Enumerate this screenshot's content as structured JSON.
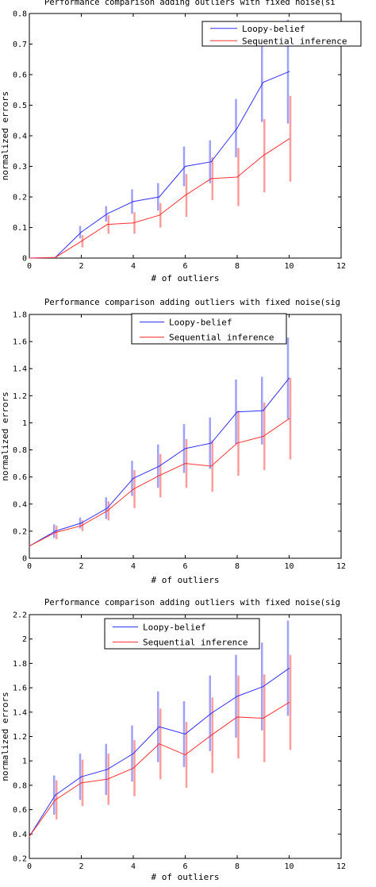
{
  "chart_data": [
    {
      "type": "line",
      "title": "Performance comparison adding outliers with fixed noise(si",
      "xlabel": "# of outliers",
      "ylabel": "normalized errors",
      "xlim": [
        0,
        12
      ],
      "ylim": [
        0,
        0.8
      ],
      "xticks": [
        0,
        2,
        4,
        6,
        8,
        10,
        12
      ],
      "yticks": [
        0,
        0.1,
        0.2,
        0.3,
        0.4,
        0.5,
        0.6,
        0.7,
        0.8
      ],
      "x": [
        0,
        1,
        2,
        3,
        4,
        5,
        6,
        7,
        8,
        9,
        10
      ],
      "legend_position": "top-right",
      "series": [
        {
          "name": "Loopy-belief",
          "color": "#3333ff",
          "errcolor": "#a0a0ff",
          "values": [
            0,
            0.002,
            0.085,
            0.145,
            0.185,
            0.2,
            0.3,
            0.315,
            0.425,
            0.575,
            0.61
          ],
          "err": [
            0,
            0,
            0.02,
            0.025,
            0.04,
            0.045,
            0.065,
            0.07,
            0.095,
            0.13,
            0.17
          ]
        },
        {
          "name": "Sequential inference",
          "color": "#ff3333",
          "errcolor": "#ff9c9c",
          "values": [
            0,
            0.002,
            0.055,
            0.11,
            0.115,
            0.14,
            0.205,
            0.26,
            0.265,
            0.335,
            0.39
          ],
          "err": [
            0,
            0,
            0.02,
            0.03,
            0.035,
            0.04,
            0.07,
            0.07,
            0.095,
            0.12,
            0.14
          ]
        }
      ]
    },
    {
      "type": "line",
      "title": "Performance comparison adding outliers with fixed noise(sig",
      "xlabel": "# of outliers",
      "ylabel": "normalized errors",
      "xlim": [
        0,
        12
      ],
      "ylim": [
        0,
        1.8
      ],
      "xticks": [
        0,
        2,
        4,
        6,
        8,
        10,
        12
      ],
      "yticks": [
        0,
        0.2,
        0.4,
        0.6,
        0.8,
        1,
        1.2,
        1.4,
        1.6,
        1.8
      ],
      "x": [
        0,
        1,
        2,
        3,
        4,
        5,
        6,
        7,
        8,
        9,
        10
      ],
      "legend_position": "top-center",
      "series": [
        {
          "name": "Loopy-belief",
          "color": "#3333ff",
          "errcolor": "#a0a0ff",
          "values": [
            0.09,
            0.2,
            0.26,
            0.37,
            0.59,
            0.68,
            0.81,
            0.85,
            1.08,
            1.09,
            1.33
          ],
          "err": [
            0,
            0.05,
            0.04,
            0.08,
            0.13,
            0.16,
            0.18,
            0.19,
            0.24,
            0.25,
            0.3
          ]
        },
        {
          "name": "Sequential inference",
          "color": "#ff3333",
          "errcolor": "#ff9c9c",
          "values": [
            0.09,
            0.19,
            0.24,
            0.35,
            0.51,
            0.61,
            0.7,
            0.68,
            0.85,
            0.9,
            1.03
          ],
          "err": [
            0,
            0.05,
            0.04,
            0.07,
            0.14,
            0.16,
            0.18,
            0.19,
            0.24,
            0.25,
            0.3
          ]
        }
      ]
    },
    {
      "type": "line",
      "title": "Performance comparison adding outliers with fixed noise(sig",
      "xlabel": "# of outliers",
      "ylabel": "normalized errors",
      "xlim": [
        0,
        12
      ],
      "ylim": [
        0.2,
        2.2
      ],
      "xticks": [
        0,
        2,
        4,
        6,
        8,
        10,
        12
      ],
      "yticks": [
        0.2,
        0.4,
        0.6,
        0.8,
        1,
        1.2,
        1.4,
        1.6,
        1.8,
        2,
        2.2
      ],
      "x": [
        0,
        1,
        2,
        3,
        4,
        5,
        6,
        7,
        8,
        9,
        10
      ],
      "legend_position": "top-center",
      "series": [
        {
          "name": "Loopy-belief",
          "color": "#3333ff",
          "errcolor": "#a0a0ff",
          "values": [
            0.38,
            0.72,
            0.87,
            0.93,
            1.06,
            1.28,
            1.22,
            1.39,
            1.53,
            1.61,
            1.76
          ],
          "err": [
            0,
            0.16,
            0.19,
            0.21,
            0.23,
            0.29,
            0.27,
            0.31,
            0.34,
            0.36,
            0.39
          ]
        },
        {
          "name": "Sequential inference",
          "color": "#ff3333",
          "errcolor": "#ff9c9c",
          "values": [
            0.38,
            0.68,
            0.82,
            0.85,
            0.94,
            1.14,
            1.05,
            1.21,
            1.36,
            1.35,
            1.48
          ],
          "err": [
            0,
            0.16,
            0.19,
            0.21,
            0.23,
            0.29,
            0.27,
            0.31,
            0.34,
            0.36,
            0.39
          ]
        }
      ]
    }
  ]
}
